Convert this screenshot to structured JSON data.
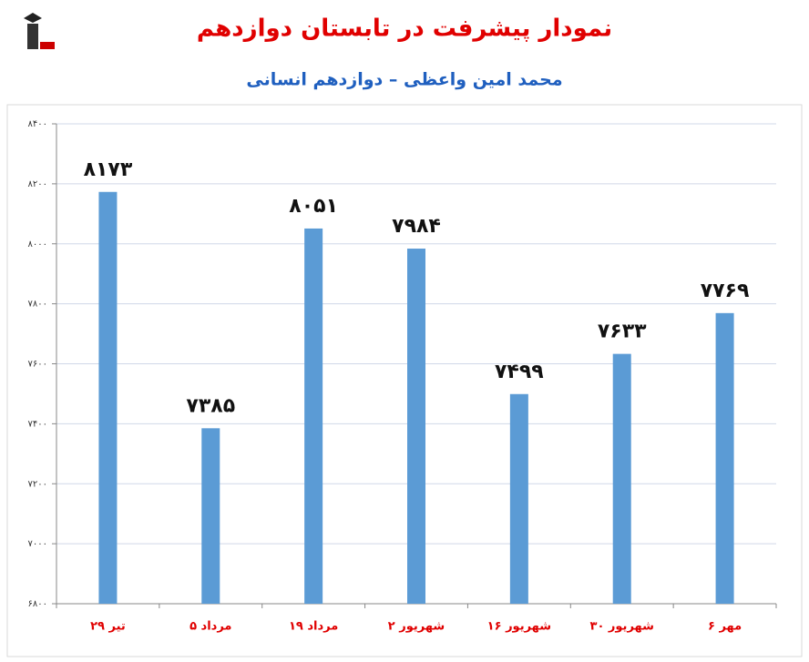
{
  "chart_data": {
    "type": "bar",
    "title": "نمودار پیشرفت در تابستان دوازدهم",
    "subtitle": "محمد امین واعظی – دوازدهم انسانی",
    "categories": [
      "۲۹ تیر",
      "۵ مرداد",
      "۱۹ مرداد",
      "۲ شهریور",
      "۱۶ شهریور",
      "۳۰ شهریور",
      "۶ مهر"
    ],
    "values": [
      8173,
      7385,
      8051,
      7984,
      7499,
      7633,
      7769
    ],
    "value_labels": [
      "۸۱۷۳",
      "۷۳۸۵",
      "۸۰۵۱",
      "۷۹۸۴",
      "۷۴۹۹",
      "۷۶۳۳",
      "۷۷۶۹"
    ],
    "color": "#5b9bd5",
    "ylim": [
      6800,
      8400
    ],
    "yticks": [
      {
        "value": 6800,
        "label": "۶۸۰۰"
      },
      {
        "value": 7000,
        "label": "۷۰۰۰"
      },
      {
        "value": 7200,
        "label": "۷۲۰۰"
      },
      {
        "value": 7400,
        "label": "۷۴۰۰"
      },
      {
        "value": 7600,
        "label": "۷۶۰۰"
      },
      {
        "value": 7800,
        "label": "۷۸۰۰"
      },
      {
        "value": 8000,
        "label": "۸۰۰۰"
      },
      {
        "value": 8200,
        "label": "۸۲۰۰"
      },
      {
        "value": 8400,
        "label": "۸۴۰۰"
      }
    ],
    "grid": true
  }
}
